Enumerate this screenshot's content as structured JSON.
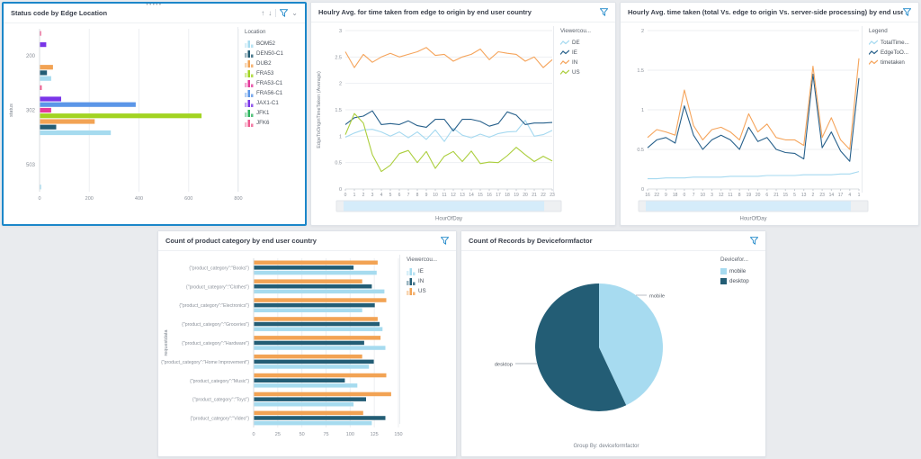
{
  "ui": {
    "drag_handle_dots": "•••••",
    "toolbar": {
      "move_up": "↑",
      "move_down": "↓",
      "collapse": "⌄"
    }
  },
  "colors": {
    "selection_border": "#1c87c9",
    "filter_icon": "#1d87c9",
    "brush_fill": "#d5ecfa",
    "grid": "#edeff2",
    "axis_text": "#8a9099"
  },
  "chart_data": [
    {
      "type": "bar",
      "title": "Status code by Edge Location",
      "ylabel": "status",
      "xlabel": "",
      "categories": [
        "200",
        "302",
        "503"
      ],
      "xticks": [
        0,
        200,
        400,
        600,
        800
      ],
      "xlim": [
        0,
        800
      ],
      "legend_title": "Location",
      "legend_position": "right",
      "grid": true,
      "series": [
        {
          "name": "BOM52",
          "color": "#a6dbef",
          "values": [
            45,
            285,
            4
          ]
        },
        {
          "name": "DEN50-C1",
          "color": "#235d75",
          "values": [
            28,
            65,
            0
          ]
        },
        {
          "name": "DUB2",
          "color": "#f2a354",
          "values": [
            52,
            220,
            0
          ]
        },
        {
          "name": "FRA53",
          "color": "#a2d422",
          "values": [
            0,
            650,
            0
          ]
        },
        {
          "name": "FRA53-C1",
          "color": "#e43a9b",
          "values": [
            0,
            45,
            0
          ]
        },
        {
          "name": "FRA56-C1",
          "color": "#5b96e8",
          "values": [
            0,
            385,
            0
          ]
        },
        {
          "name": "JAX1-C1",
          "color": "#7a35e8",
          "values": [
            25,
            85,
            0
          ]
        },
        {
          "name": "JFK1",
          "color": "#2db45e",
          "values": [
            0,
            0,
            0
          ]
        },
        {
          "name": "JFK6",
          "color": "#ef5b8f",
          "values": [
            3,
            7,
            0
          ]
        }
      ]
    },
    {
      "type": "line",
      "title": "Houlry Avg. for time taken from edge to origin by end user country",
      "xlabel": "HourOfDay",
      "ylabel": "EdgeToOriginTimeTaken (Average)",
      "x": [
        "0",
        "1",
        "2",
        "3",
        "4",
        "5",
        "6",
        "7",
        "8",
        "9",
        "10",
        "11",
        "12",
        "13",
        "14",
        "15",
        "16",
        "17",
        "18",
        "19",
        "20",
        "21",
        "22",
        "23"
      ],
      "ylim": [
        0,
        3
      ],
      "yticks": [
        0,
        0.5,
        1,
        1.5,
        2,
        2.5,
        3
      ],
      "legend_title": "Viewercou...",
      "legend_position": "right",
      "grid": true,
      "brush": true,
      "series": [
        {
          "name": "DE",
          "color": "#a5d9f0",
          "values": [
            0.98,
            1.06,
            1.12,
            1.13,
            1.08,
            1.0,
            1.08,
            0.97,
            1.08,
            0.94,
            1.12,
            0.9,
            1.15,
            1.02,
            0.97,
            1.04,
            0.98,
            1.05,
            1.08,
            1.09,
            1.3,
            1.0,
            1.03,
            1.11
          ]
        },
        {
          "name": "IE",
          "color": "#27608b",
          "values": [
            1.22,
            1.35,
            1.38,
            1.48,
            1.22,
            1.24,
            1.22,
            1.29,
            1.2,
            1.17,
            1.32,
            1.32,
            1.1,
            1.32,
            1.32,
            1.28,
            1.19,
            1.24,
            1.46,
            1.4,
            1.22,
            1.25,
            1.25,
            1.26
          ]
        },
        {
          "name": "IN",
          "color": "#f5a45b",
          "values": [
            2.6,
            2.3,
            2.55,
            2.4,
            2.5,
            2.57,
            2.5,
            2.55,
            2.6,
            2.68,
            2.53,
            2.55,
            2.42,
            2.5,
            2.55,
            2.65,
            2.45,
            2.6,
            2.57,
            2.55,
            2.42,
            2.5,
            2.3,
            2.45
          ]
        },
        {
          "name": "US",
          "color": "#abce3c",
          "values": [
            1.03,
            1.43,
            1.25,
            0.65,
            0.33,
            0.45,
            0.67,
            0.73,
            0.5,
            0.71,
            0.39,
            0.62,
            0.71,
            0.52,
            0.72,
            0.48,
            0.51,
            0.5,
            0.63,
            0.79,
            0.65,
            0.52,
            0.62,
            0.53
          ]
        }
      ]
    },
    {
      "type": "line",
      "title": "Hourly Avg. time taken (total Vs. edge to origin Vs. server-side processing) by end user country",
      "xlabel": "HourOfDay",
      "ylabel": "",
      "x": [
        "16",
        "22",
        "9",
        "18",
        "0",
        "7",
        "10",
        "3",
        "12",
        "11",
        "8",
        "19",
        "20",
        "6",
        "21",
        "15",
        "5",
        "13",
        "2",
        "23",
        "14",
        "17",
        "4",
        "1"
      ],
      "ylim": [
        0,
        2
      ],
      "yticks": [
        0,
        0.5,
        1,
        1.5,
        2
      ],
      "legend_title": "Legend",
      "legend_position": "right",
      "grid": true,
      "brush": true,
      "series": [
        {
          "name": "TotalTime...",
          "color": "#a5d9f0",
          "values": [
            0.13,
            0.13,
            0.14,
            0.14,
            0.14,
            0.15,
            0.15,
            0.15,
            0.15,
            0.16,
            0.16,
            0.16,
            0.16,
            0.17,
            0.17,
            0.17,
            0.17,
            0.18,
            0.18,
            0.18,
            0.18,
            0.19,
            0.19,
            0.22
          ]
        },
        {
          "name": "EdgeToO...",
          "color": "#27608b",
          "values": [
            0.52,
            0.62,
            0.65,
            0.58,
            1.05,
            0.68,
            0.5,
            0.62,
            0.68,
            0.62,
            0.5,
            0.78,
            0.6,
            0.65,
            0.5,
            0.46,
            0.45,
            0.38,
            1.45,
            0.52,
            0.72,
            0.48,
            0.35,
            1.4
          ]
        },
        {
          "name": "timetaken",
          "color": "#f5a45b",
          "values": [
            0.65,
            0.75,
            0.72,
            0.68,
            1.25,
            0.8,
            0.62,
            0.75,
            0.78,
            0.72,
            0.62,
            0.95,
            0.72,
            0.82,
            0.65,
            0.62,
            0.62,
            0.55,
            1.55,
            0.65,
            0.9,
            0.62,
            0.5,
            1.65
          ]
        }
      ]
    },
    {
      "type": "bar",
      "title": "Count of product category by end user country",
      "ylabel": "requestdata",
      "xlabel": "",
      "categories": [
        "{\"product_category\":\"Books\"}",
        "{\"product_category\":\"Clothes\"}",
        "{\"product_category\":\"Electronics\"}",
        "{\"product_category\":\"Groceries\"}",
        "{\"product_category\":\"Hardware\"}",
        "{\"product_category\":\"Home Improvement\"}",
        "{\"product_category\":\"Music\"}",
        "{\"product_category\":\"Toys\"}",
        "{\"product_category\":\"Video\"}"
      ],
      "xticks": [
        0,
        25,
        50,
        75,
        100,
        125,
        150
      ],
      "xlim": [
        0,
        150
      ],
      "legend_title": "Viewercou...",
      "legend_position": "right",
      "grid": true,
      "series": [
        {
          "name": "IE",
          "color": "#a6dbef",
          "values": [
            127,
            135,
            112,
            133,
            136,
            119,
            107,
            103,
            122
          ]
        },
        {
          "name": "IN",
          "color": "#235d75",
          "values": [
            103,
            122,
            125,
            130,
            114,
            124,
            94,
            116,
            136
          ]
        },
        {
          "name": "US",
          "color": "#f2a354",
          "values": [
            128,
            112,
            137,
            128,
            131,
            112,
            137,
            142,
            113
          ]
        }
      ]
    },
    {
      "type": "pie",
      "title": "Count of Records by Deviceformfactor",
      "legend_title": "Devicefor...",
      "legend_position": "right",
      "footer": "Group By: deviceformfactor",
      "slices": [
        {
          "name": "mobile",
          "color": "#a7dbf0",
          "pct": 43,
          "leader": [
            [
              41,
              -58
            ],
            [
              53,
              -58
            ]
          ],
          "label_at": [
            56,
            -55.5
          ],
          "anchor": "start"
        },
        {
          "name": "desktop",
          "color": "#235d75",
          "pct": 57,
          "leader": [
            [
              -69,
              18
            ],
            [
              -93,
              18
            ]
          ],
          "label_at": [
            -96,
            20.5
          ],
          "anchor": "end"
        }
      ]
    }
  ]
}
